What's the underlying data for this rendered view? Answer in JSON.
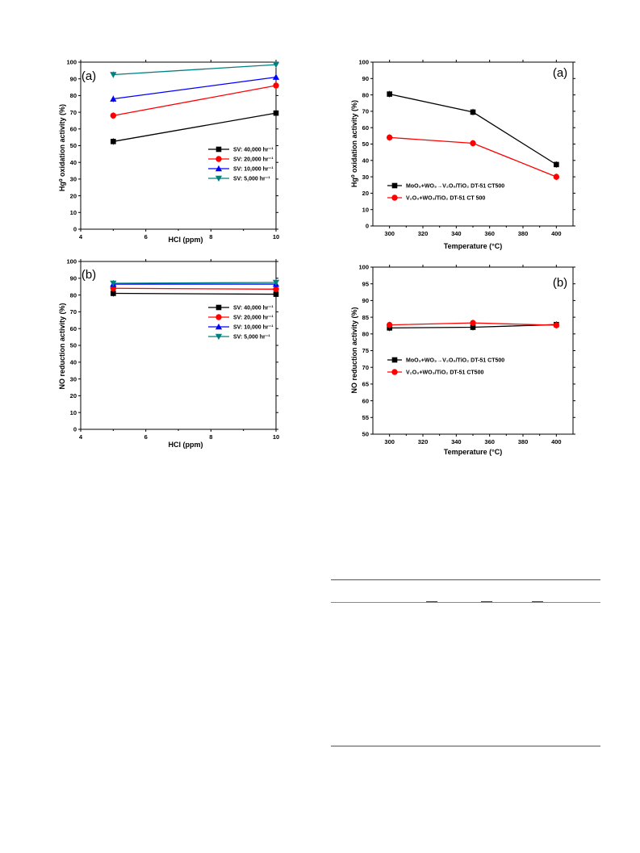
{
  "charts": [
    {
      "id": "hcl_hg",
      "panel_label": "(a)",
      "chart_data": {
        "type": "line",
        "xlabel": "HCl (ppm)",
        "ylabel": "Hg⁰ oxidation activity (%)",
        "xlim": [
          4,
          10
        ],
        "ylim": [
          0,
          100
        ],
        "xticks": [
          4,
          6,
          8,
          10
        ],
        "yticks": [
          0,
          10,
          20,
          30,
          40,
          50,
          60,
          70,
          80,
          90,
          100
        ],
        "x": [
          5,
          10
        ],
        "legend_position": "lower-right",
        "series": [
          {
            "name": "SV: 40,000 hr⁻¹",
            "values": [
              52.5,
              69.5
            ],
            "color": "#000000",
            "marker": "square"
          },
          {
            "name": "SV: 20,000 hr⁻¹",
            "values": [
              68,
              86
            ],
            "color": "#ff0000",
            "marker": "circle"
          },
          {
            "name": "SV: 10,000 hr⁻¹",
            "values": [
              78,
              91
            ],
            "color": "#0000ff",
            "marker": "triangle-up"
          },
          {
            "name": "SV: 5,000 hr⁻¹",
            "values": [
              92.5,
              98.5
            ],
            "color": "#008080",
            "marker": "triangle-down"
          }
        ]
      }
    },
    {
      "id": "hcl_no",
      "panel_label": "(b)",
      "chart_data": {
        "type": "line",
        "xlabel": "HCl (ppm)",
        "ylabel": "NO reduction activity (%)",
        "xlim": [
          4,
          10
        ],
        "ylim": [
          0,
          100
        ],
        "xticks": [
          4,
          6,
          8,
          10
        ],
        "yticks": [
          0,
          10,
          20,
          30,
          40,
          50,
          60,
          70,
          80,
          90,
          100
        ],
        "x": [
          5,
          10
        ],
        "legend_position": "upper-right",
        "series": [
          {
            "name": "SV: 40,000 hr⁻¹",
            "values": [
              81,
              80.5
            ],
            "color": "#000000",
            "marker": "square"
          },
          {
            "name": "SV: 20,000 hr⁻¹",
            "values": [
              84,
              83.5
            ],
            "color": "#ff0000",
            "marker": "circle"
          },
          {
            "name": "SV: 10,000 hr⁻¹",
            "values": [
              86.5,
              86.5
            ],
            "color": "#0000ff",
            "marker": "triangle-up"
          },
          {
            "name": "SV: 5,000 hr⁻¹",
            "values": [
              87,
              87.5
            ],
            "color": "#008080",
            "marker": "triangle-down"
          }
        ]
      }
    },
    {
      "id": "temp_hg",
      "panel_label": "(a)",
      "chart_data": {
        "type": "line",
        "xlabel": "Temperature (°C)",
        "ylabel": "Hg⁰ oxidation activity (%)",
        "xlim": [
          290,
          410
        ],
        "ylim": [
          0,
          100
        ],
        "xticks": [
          300,
          320,
          340,
          360,
          380,
          400
        ],
        "yticks": [
          0,
          10,
          20,
          30,
          40,
          50,
          60,
          70,
          80,
          90,
          100
        ],
        "x": [
          300,
          350,
          400
        ],
        "legend_position": "lower-left",
        "series": [
          {
            "name": "MoO₃+WO₃→V₂O₅/TiO₂ DT-51 CT500",
            "values": [
              80.5,
              69.5,
              37.5
            ],
            "color": "#000000",
            "marker": "square"
          },
          {
            "name": "V₂O₅+WO₃/TiO₂ DT-51 CT 500",
            "values": [
              54,
              50.5,
              30
            ],
            "color": "#ff0000",
            "marker": "circle"
          }
        ]
      }
    },
    {
      "id": "temp_no",
      "panel_label": "(b)",
      "chart_data": {
        "type": "line",
        "xlabel": "Temperature (°C)",
        "ylabel": "NO reduction activity (%)",
        "xlim": [
          290,
          410
        ],
        "ylim": [
          50,
          100
        ],
        "xticks": [
          300,
          320,
          340,
          360,
          380,
          400
        ],
        "yticks": [
          50,
          55,
          60,
          65,
          70,
          75,
          80,
          85,
          90,
          95,
          100
        ],
        "x": [
          300,
          350,
          400
        ],
        "legend_position": "center-left",
        "series": [
          {
            "name": "MoO₃+WO₃→V₂O₅/TiO₂ DT-51 CT500",
            "values": [
              81.8,
              82,
              82.8
            ],
            "color": "#000000",
            "marker": "square"
          },
          {
            "name": "V₂O₅+WO₃/TiO₂ DT-51 CT500",
            "values": [
              82.7,
              83.3,
              82.6
            ],
            "color": "#ff0000",
            "marker": "circle"
          }
        ]
      }
    }
  ]
}
